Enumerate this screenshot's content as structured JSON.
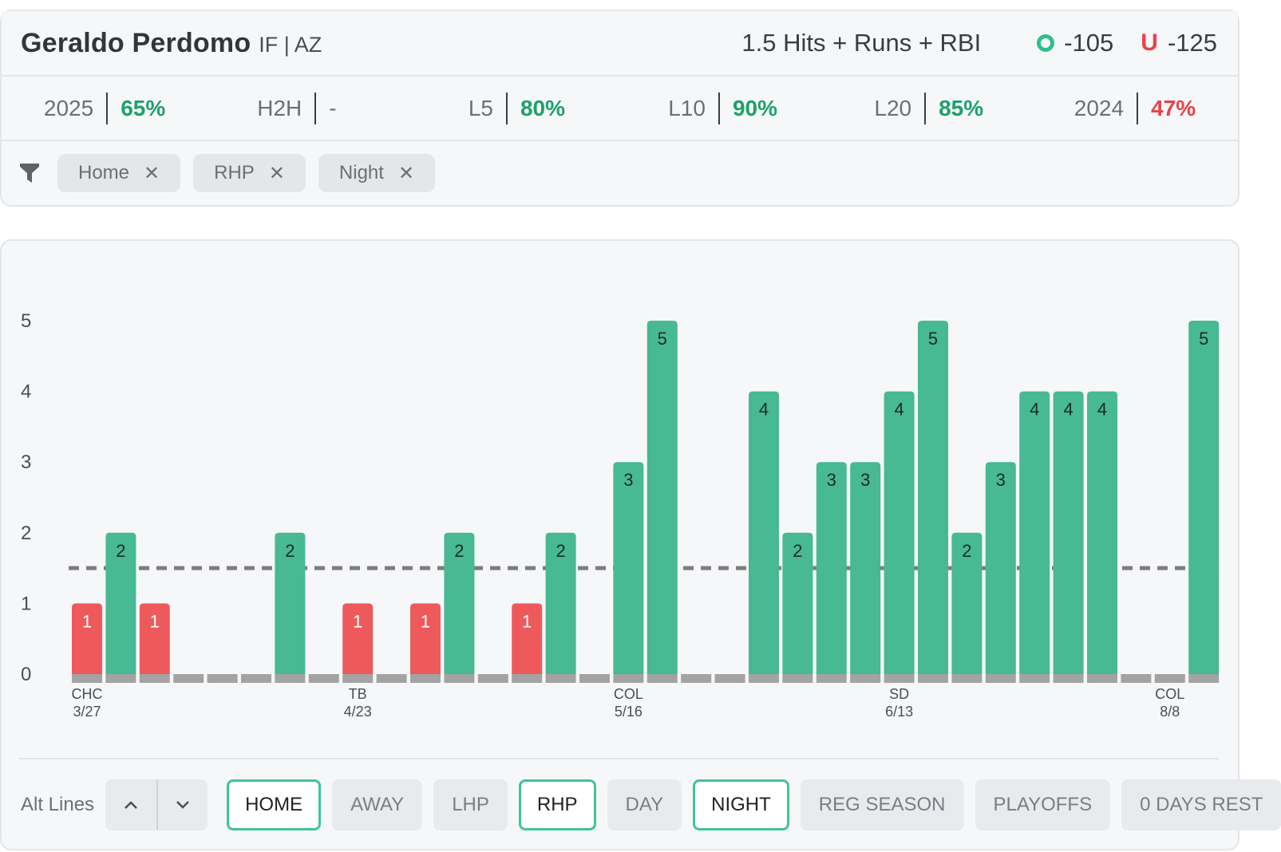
{
  "player": {
    "name": "Geraldo Perdomo",
    "meta": "IF | AZ"
  },
  "prop": {
    "label": "1.5 Hits + Runs + RBI",
    "over_label": "O",
    "over_odds": "-105",
    "under_label": "U",
    "under_odds": "-125"
  },
  "stats": [
    {
      "label": "2025",
      "value": "65%",
      "tone": "green"
    },
    {
      "label": "H2H",
      "value": "-",
      "tone": "gray"
    },
    {
      "label": "L5",
      "value": "80%",
      "tone": "green"
    },
    {
      "label": "L10",
      "value": "90%",
      "tone": "green"
    },
    {
      "label": "L20",
      "value": "85%",
      "tone": "green"
    },
    {
      "label": "2024",
      "value": "47%",
      "tone": "red"
    }
  ],
  "filters": [
    "Home",
    "RHP",
    "Night"
  ],
  "icons": {
    "filter": "filter-funnel-icon",
    "remove": "close-icon",
    "up": "chevron-up-icon",
    "down": "chevron-down-icon"
  },
  "colors": {
    "over": "#47b993",
    "under": "#ee5a5c",
    "baseline": "#a3a3a3",
    "line": "#7d7d7d"
  },
  "chart_data": {
    "type": "bar",
    "line_value": 1.5,
    "ylim": [
      0,
      5
    ],
    "yticks": [
      0,
      1,
      2,
      3,
      4,
      5
    ],
    "values": [
      1,
      2,
      1,
      0,
      0,
      0,
      2,
      0,
      1,
      0,
      1,
      2,
      0,
      1,
      2,
      0,
      3,
      5,
      0,
      0,
      4,
      2,
      3,
      3,
      4,
      5,
      2,
      3,
      4,
      4,
      4,
      0,
      0,
      5
    ],
    "x_labels": [
      {
        "index": 0,
        "team": "CHC",
        "date": "3/27"
      },
      {
        "index": 8,
        "team": "TB",
        "date": "4/23"
      },
      {
        "index": 16,
        "team": "COL",
        "date": "5/16"
      },
      {
        "index": 24,
        "team": "SD",
        "date": "6/13"
      },
      {
        "index": 32,
        "team": "COL",
        "date": "8/8"
      }
    ]
  },
  "bottom": {
    "alt_label": "Alt Lines",
    "pills": [
      {
        "label": "HOME",
        "active": true
      },
      {
        "label": "AWAY",
        "active": false
      },
      {
        "label": "LHP",
        "active": false
      },
      {
        "label": "RHP",
        "active": true
      },
      {
        "label": "DAY",
        "active": false
      },
      {
        "label": "NIGHT",
        "active": true
      },
      {
        "label": "REG SEASON",
        "active": false
      },
      {
        "label": "PLAYOFFS",
        "active": false
      },
      {
        "label": "0 DAYS REST",
        "active": false
      }
    ]
  }
}
